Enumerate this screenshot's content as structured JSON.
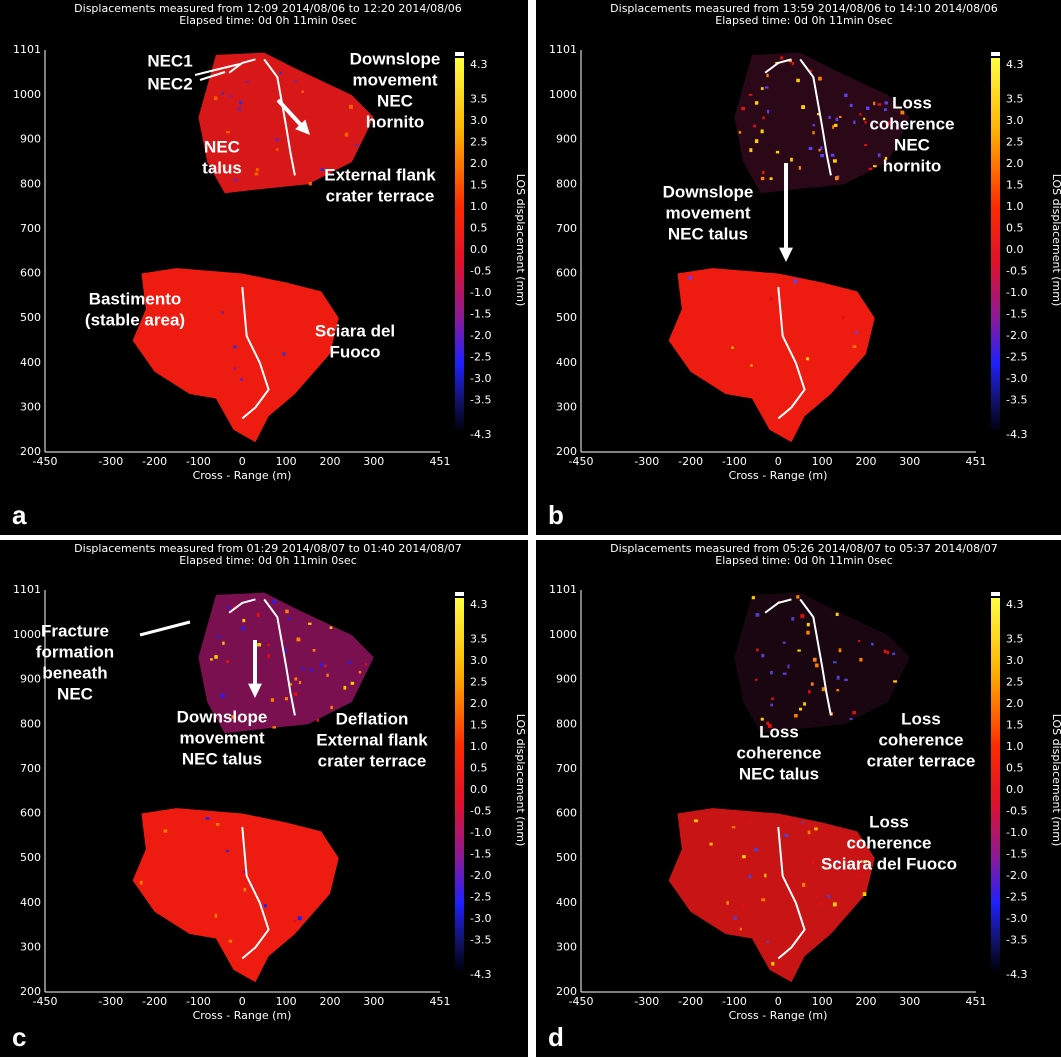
{
  "axes": {
    "x_label": "Cross - Range (m)",
    "colorbar_label": "LOS displacement (mm)",
    "xticks": [
      -450,
      -300,
      -200,
      -100,
      0,
      100,
      200,
      300,
      451
    ],
    "yticks": [
      200,
      300,
      400,
      500,
      600,
      700,
      800,
      900,
      1000,
      1101
    ],
    "colorbar_ticks": [
      4.3,
      3.5,
      {
        "value": 3,
        "label": "3.0"
      },
      2.5,
      {
        "value": 2,
        "label": "2.0"
      },
      1.5,
      {
        "value": 1,
        "label": "1.0"
      },
      0.5,
      {
        "value": 0,
        "label": "0.0"
      },
      -0.5,
      {
        "value": -1,
        "label": "-1.0"
      },
      -1.5,
      {
        "value": -2,
        "label": "-2.0"
      },
      -2.5,
      {
        "value": -3,
        "label": "-3.0"
      },
      -3.5,
      -4.3
    ]
  },
  "panels": [
    {
      "letter": "a",
      "title": "Displacements measured from 12:09 2014/08/06 to 12:20 2014/08/06",
      "elapsed": "Elapsed time: 0d 0h 11min 0sec",
      "annotations": [
        {
          "lines": [
            "NEC1"
          ]
        },
        {
          "lines": [
            "NEC2"
          ]
        },
        {
          "lines": [
            "Downslope",
            "movement",
            "NEC",
            "hornito"
          ]
        },
        {
          "lines": [
            "NEC",
            "talus"
          ]
        },
        {
          "lines": [
            "External flank",
            "crater terrace"
          ]
        },
        {
          "lines": [
            "Bastimento",
            "(stable area)"
          ]
        },
        {
          "lines": [
            "Sciara del",
            "Fuoco"
          ]
        }
      ]
    },
    {
      "letter": "b",
      "title": "Displacements measured from 13:59 2014/08/06 to 14:10 2014/08/06",
      "elapsed": "Elapsed time: 0d 0h 11min 0sec",
      "annotations": [
        {
          "lines": [
            "Loss",
            "coherence",
            "NEC",
            "hornito"
          ]
        },
        {
          "lines": [
            "Downslope",
            "movement",
            "NEC talus"
          ]
        }
      ]
    },
    {
      "letter": "c",
      "title": "Displacements measured from 01:29 2014/08/07 to 01:40 2014/08/07",
      "elapsed": "Elapsed time: 0d 0h 11min 0sec",
      "annotations": [
        {
          "lines": [
            "Fracture",
            "formation",
            "beneath",
            "NEC"
          ]
        },
        {
          "lines": [
            "Downslope",
            "movement",
            "NEC talus"
          ]
        },
        {
          "lines": [
            "Deflation",
            "External flank",
            "crater terrace"
          ]
        }
      ]
    },
    {
      "letter": "d",
      "title": "Displacements measured from 05:26 2014/08/07 to 05:37 2014/08/07",
      "elapsed": "Elapsed time: 0d 0h 11min 0sec",
      "annotations": [
        {
          "lines": [
            "Loss",
            "coherence",
            "NEC talus"
          ]
        },
        {
          "lines": [
            "Loss",
            "coherence",
            "crater terrace"
          ]
        },
        {
          "lines": [
            "Loss",
            "coherence",
            "Sciara del Fuoco"
          ]
        }
      ]
    }
  ]
}
